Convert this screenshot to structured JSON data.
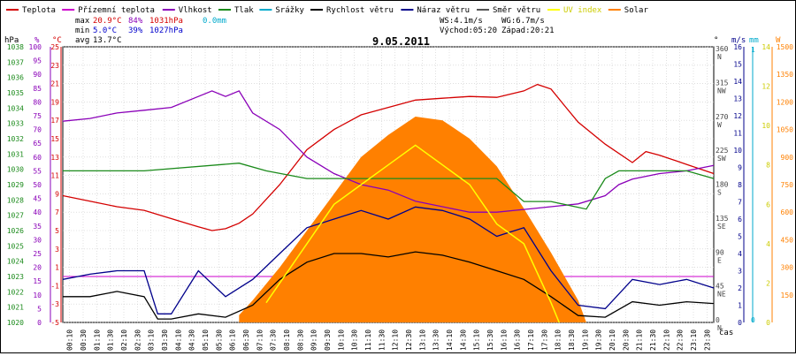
{
  "legend": [
    {
      "label": "Teplota",
      "color": "#d40000"
    },
    {
      "label": "Přízemní teplota",
      "color": "#cc00cc"
    },
    {
      "label": "Vlhkost",
      "color": "#8a00b8"
    },
    {
      "label": "Tlak",
      "color": "#1a8a1a"
    },
    {
      "label": "Srážky",
      "color": "#00aacc"
    },
    {
      "label": "Rychlost větru",
      "color": "#000000"
    },
    {
      "label": "Náraz větru",
      "color": "#00008b"
    },
    {
      "label": "Směr větru",
      "color": "#555555"
    },
    {
      "label": "UV index",
      "color": "#ffff00"
    },
    {
      "label": "Solar",
      "color": "#ff8000"
    }
  ],
  "stats": {
    "max_label": "max",
    "max_temp": "20.9°C",
    "max_hum": "84%",
    "max_press": "1031hPa",
    "rain": "0.0mm",
    "min_label": "min",
    "min_temp": "5.0°C",
    "min_hum": "39%",
    "min_press": "1027hPa",
    "avg_label": "avg",
    "avg_temp": "13.7°C"
  },
  "wind_info": {
    "ws": "WS:4.1m/s",
    "wg": "WG:6.7m/s",
    "sunrise": "Východ:05:20",
    "sunset": "Západ:20:21"
  },
  "date": "9.05.2011",
  "axis_units": {
    "hpa": "hPa",
    "pct": "%",
    "degc": "°C",
    "deg": "°",
    "ms": "m/s",
    "mm": "mm",
    "w": "W",
    "time": "čas"
  },
  "colors": {
    "temp": "#d40000",
    "hum": "#8a00b8",
    "press": "#1a8a1a",
    "gust": "#00008b",
    "wind": "#000000",
    "dir": "#777777",
    "uv": "#ffff00",
    "solar": "#ff8000",
    "ground": "#cc00cc",
    "rain": "#00aacc"
  },
  "chart_data": {
    "type": "line",
    "x_range": [
      0,
      24
    ],
    "x_ticks": [
      "00:10",
      "00:30",
      "01:10",
      "01:30",
      "02:10",
      "02:30",
      "03:10",
      "03:30",
      "04:10",
      "04:30",
      "05:10",
      "05:30",
      "06:10",
      "06:30",
      "07:10",
      "07:30",
      "08:10",
      "08:30",
      "09:10",
      "09:30",
      "10:10",
      "10:30",
      "11:10",
      "11:30",
      "12:10",
      "12:30",
      "13:10",
      "13:30",
      "14:10",
      "14:30",
      "15:10",
      "15:30",
      "16:10",
      "16:30",
      "17:10",
      "17:30",
      "18:10",
      "18:30",
      "19:10",
      "19:30",
      "20:10",
      "20:30",
      "21:10",
      "21:30",
      "22:10",
      "22:30",
      "23:10",
      "23:30"
    ],
    "y_axes": {
      "pressure_hpa": {
        "range": [
          1020,
          1038
        ],
        "ticks": [
          "1038",
          "1037",
          "1036",
          "1035",
          "1034",
          "1033",
          "1032",
          "1031",
          "1030",
          "1029",
          "1028",
          "1027",
          "1026",
          "1025",
          "1024",
          "1023",
          "1022",
          "1021",
          "1020"
        ]
      },
      "humidity_pct": {
        "range": [
          0,
          100
        ],
        "ticks": [
          "100",
          "95",
          "90",
          "85",
          "80",
          "75",
          "70",
          "65",
          "60",
          "55",
          "50",
          "45",
          "40",
          "35",
          "30",
          "25",
          "20",
          "15",
          "10",
          "5",
          "0"
        ]
      },
      "temp_c": {
        "range": [
          -5,
          25
        ],
        "ticks": [
          "25",
          "23",
          "21",
          "19",
          "17",
          "15",
          "13",
          "11",
          "9",
          "7",
          "5",
          "3",
          "1",
          "-1",
          "-3",
          "-5"
        ]
      },
      "wind_dir_deg": {
        "ticks": [
          {
            "v": "360",
            "c": "N"
          },
          {
            "v": "315",
            "c": "NW"
          },
          {
            "v": "270",
            "c": "W"
          },
          {
            "v": "225",
            "c": "SW"
          },
          {
            "v": "180",
            "c": "S"
          },
          {
            "v": "135",
            "c": "SE"
          },
          {
            "v": "90",
            "c": "E"
          },
          {
            "v": "45",
            "c": "NE"
          },
          {
            "v": "0",
            "c": "N"
          }
        ]
      },
      "wind_ms": {
        "range": [
          0,
          16
        ],
        "ticks": [
          "16",
          "15",
          "14",
          "13",
          "12",
          "11",
          "10",
          "9",
          "8",
          "7",
          "6",
          "5",
          "4",
          "3",
          "2",
          "1",
          "0"
        ]
      },
      "rain_mm": {
        "ticks": [
          "1",
          "0"
        ]
      },
      "uv": {
        "ticks": [
          "14",
          "12",
          "10",
          "8",
          "6",
          "4",
          "2",
          "0"
        ]
      },
      "solar_w": {
        "range": [
          0,
          1500
        ],
        "ticks": [
          "1500",
          "1350",
          "1200",
          "1050",
          "900",
          "750",
          "600",
          "450",
          "300",
          "150"
        ]
      }
    },
    "series": [
      {
        "name": "Teplota",
        "unit": "°C",
        "x": [
          0,
          1,
          2,
          3,
          4,
          5,
          5.5,
          6,
          6.5,
          7,
          8,
          9,
          10,
          11,
          12,
          13,
          14,
          15,
          16,
          17,
          17.5,
          18,
          18.5,
          19,
          20,
          21,
          21.5,
          22,
          23,
          24
        ],
        "values": [
          8.8,
          8.2,
          7.6,
          7.2,
          6.3,
          5.4,
          5.0,
          5.2,
          5.8,
          6.8,
          10.0,
          13.8,
          16.0,
          17.6,
          18.4,
          19.2,
          19.4,
          19.6,
          19.5,
          20.2,
          20.9,
          20.4,
          18.6,
          16.8,
          14.4,
          12.4,
          13.6,
          13.2,
          12.2,
          11.2
        ]
      },
      {
        "name": "Vlhkost",
        "unit": "%",
        "x": [
          0,
          1,
          2,
          3,
          4,
          5,
          5.5,
          6,
          6.5,
          7,
          8,
          9,
          10,
          11,
          12,
          13,
          14,
          15,
          16,
          17,
          18,
          19,
          20,
          20.5,
          21,
          22,
          23,
          24
        ],
        "values": [
          73,
          74,
          76,
          77,
          78,
          82,
          84,
          82,
          84,
          76,
          70,
          60,
          54,
          50,
          48,
          44,
          42,
          40,
          40,
          41,
          42,
          43,
          46,
          50,
          52,
          54,
          55,
          57
        ]
      },
      {
        "name": "Tlak",
        "unit": "hPa",
        "x": [
          0,
          3,
          6.5,
          7.5,
          9,
          10.5,
          11.5,
          12.5,
          13.5,
          14,
          15,
          16,
          17,
          18,
          19.3,
          20,
          20.5,
          21,
          22,
          23,
          24
        ],
        "values": [
          1029.9,
          1029.9,
          1030.4,
          1029.9,
          1029.4,
          1029.4,
          1029.4,
          1029.4,
          1029.4,
          1029.4,
          1029.4,
          1029.4,
          1027.9,
          1027.9,
          1027.4,
          1029.4,
          1029.9,
          1029.9,
          1029.9,
          1029.9,
          1029.4
        ]
      },
      {
        "name": "Rychlost větru",
        "unit": "m/s",
        "x": [
          0,
          1,
          2,
          3,
          3.5,
          4,
          5,
          6,
          7,
          8,
          9,
          10,
          11,
          12,
          13,
          14,
          15,
          16,
          17,
          18,
          19,
          20,
          21,
          22,
          23,
          24
        ],
        "values": [
          1.5,
          1.5,
          1.8,
          1.5,
          0.2,
          0.2,
          0.5,
          0.3,
          1.0,
          2.5,
          3.5,
          4.0,
          4.0,
          3.8,
          4.1,
          3.9,
          3.5,
          3.0,
          2.5,
          1.5,
          0.4,
          0.3,
          1.2,
          1.0,
          1.2,
          1.1
        ]
      },
      {
        "name": "Náraz větru",
        "unit": "m/s",
        "x": [
          0,
          1,
          2,
          3,
          3.5,
          4,
          5,
          6,
          7,
          8,
          9,
          10,
          11,
          12,
          13,
          14,
          15,
          16,
          17,
          18,
          19,
          20,
          21,
          22,
          23,
          24
        ],
        "values": [
          2.5,
          2.8,
          3.0,
          3.0,
          0.5,
          0.5,
          3.0,
          1.5,
          2.5,
          4.0,
          5.5,
          6.0,
          6.5,
          6.0,
          6.7,
          6.5,
          6.0,
          5.0,
          5.5,
          3.0,
          1.0,
          0.8,
          2.5,
          2.2,
          2.5,
          2.0
        ]
      },
      {
        "name": "Solar",
        "unit": "W",
        "x": [
          6.5,
          7,
          8,
          9,
          10,
          11,
          12,
          13,
          14,
          15,
          16,
          17,
          18,
          19,
          19.3
        ],
        "values": [
          40,
          120,
          300,
          500,
          700,
          900,
          1020,
          1120,
          1100,
          1000,
          850,
          620,
          380,
          120,
          0
        ]
      },
      {
        "name": "UV index",
        "x": [
          7.5,
          8,
          9,
          10,
          11,
          12,
          13,
          14,
          15,
          16,
          17,
          18,
          18.3
        ],
        "values": [
          1,
          2,
          4,
          6,
          7,
          8,
          9,
          8,
          7,
          5,
          4,
          1,
          0
        ]
      }
    ]
  }
}
